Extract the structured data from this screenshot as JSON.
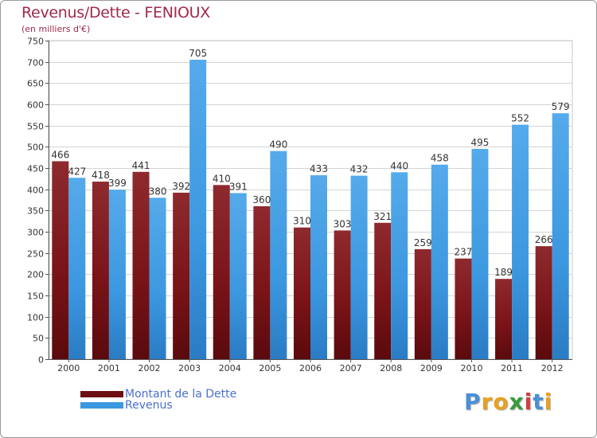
{
  "header": {
    "title": "Revenus/Dette - FENIOUX",
    "subtitle": "(en milliers d'€)"
  },
  "chart_data": {
    "type": "bar",
    "title": "Revenus/Dette - FENIOUX",
    "ylabel": "(en milliers d'€)",
    "xlabel": "",
    "categories": [
      "2000",
      "2001",
      "2002",
      "2003",
      "2004",
      "2005",
      "2006",
      "2007",
      "2008",
      "2009",
      "2010",
      "2011",
      "2012"
    ],
    "series": [
      {
        "name": "Montant de la Dette",
        "color": "#7a1418",
        "values": [
          466,
          418,
          441,
          392,
          410,
          360,
          310,
          303,
          321,
          259,
          237,
          189,
          266
        ]
      },
      {
        "name": "Revenus",
        "color": "#3c98e0",
        "values": [
          427,
          399,
          380,
          705,
          391,
          490,
          433,
          432,
          440,
          458,
          495,
          552,
          579
        ]
      }
    ],
    "ylim": [
      0,
      750
    ],
    "yticks": [
      0,
      50,
      100,
      150,
      200,
      250,
      300,
      350,
      400,
      450,
      500,
      550,
      600,
      650,
      700,
      750
    ],
    "grid": true,
    "legend_position": "bottom-left"
  },
  "legend": {
    "items": [
      {
        "label": "Montant de la Dette",
        "color": "#6e0e12"
      },
      {
        "label": "Revenus",
        "color": "#3c98e0"
      }
    ]
  },
  "logo": {
    "text": "Proxiti",
    "letters": [
      {
        "ch": "P",
        "color": "#4a8fd8"
      },
      {
        "ch": "r",
        "color": "#e8a020"
      },
      {
        "ch": "o",
        "color": "#e8a020"
      },
      {
        "ch": "x",
        "color": "#3a9a3a"
      },
      {
        "ch": "i",
        "color": "#d04040"
      },
      {
        "ch": "t",
        "color": "#4a8fd8"
      },
      {
        "ch": "i",
        "color": "#e8a020"
      }
    ]
  }
}
